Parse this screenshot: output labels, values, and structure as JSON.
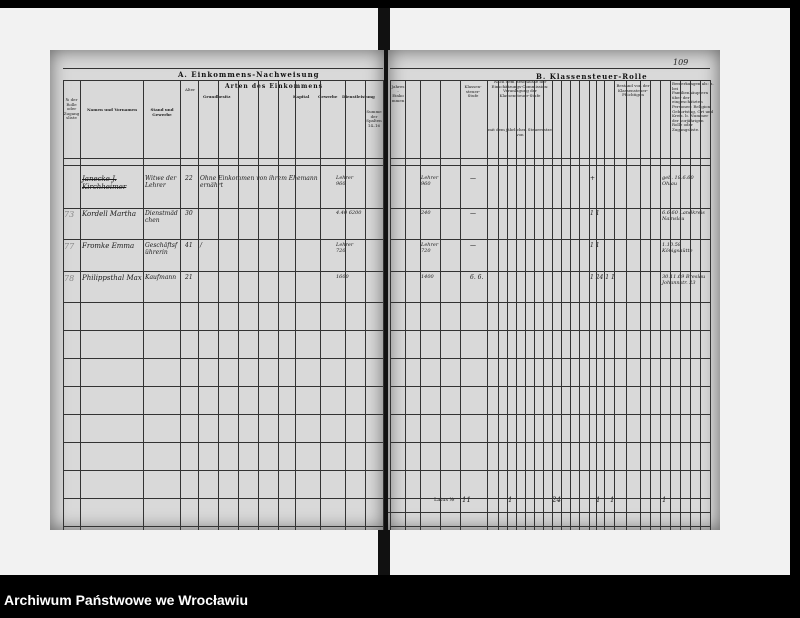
{
  "left_page": {
    "title": "A. Einkommens-Nachweisung",
    "subtitle": "Arten des Einkommens",
    "groups": [
      "Grundbesitz",
      "Kapital",
      "Gewerbe",
      "Dienstleistung"
    ],
    "headers": {
      "number": "№ der Rolle oder Zugangsliste",
      "name": "Namen und Vornamen",
      "status": "Stand und Gewerbe",
      "age": "Alter",
      "sum_total": "Summe der Spalten 14–16"
    }
  },
  "right_page": {
    "title": "B. Klassensteuer-Rolle",
    "page_number": "109",
    "headers": {
      "income_sum": "Jahres-Einkommen",
      "tax": "Klassen-steuer-Stufe",
      "decision": "Nach dem Beschlusse der Einschätzungs-Commission: Veranlagung der Klassensteuer-Stufe",
      "yearly": "mit dem jährlichen Steuersatze von",
      "household": "Bestand von der Klassensteuer-Pflichtigen",
      "remarks": "Bemerkungen als: a. bei Familienhäuptern über der eingeschätzten Personen: Religion, Geburtstag, Ort und Kreis. b. Nummer der vorjährigen Rolle oder Zugangsliste."
    },
    "sum_label": "Latus №"
  },
  "entries": [
    {
      "no": "",
      "name": "Janecke J. Kirchheimer",
      "status": "Witwe der Lehrer",
      "age": "22",
      "note": "Ohne Einkommen von ihrem Ehemann ernährt",
      "income": "Lehrer 960",
      "sum": "Lehrer 960",
      "tax": "—",
      "mark": "+",
      "remark": "geb. 18.6.60 Ohlau"
    },
    {
      "no": "73",
      "name": "Kordell Martha",
      "status": "Dienstmädchen",
      "age": "30",
      "note": "",
      "income": "4.40 6200",
      "sum": "240",
      "tax": "—",
      "mark": "1  1",
      "remark": "6.6.60 Landkreis Namslau"
    },
    {
      "no": "77",
      "name": "Fromke Emma",
      "status": "Geschäftsführerin",
      "age": "41",
      "note": "/",
      "income": "Lehrer 720",
      "sum": "Lehrer 720",
      "tax": "—",
      "mark": "1  1",
      "remark": "1.10.58 Königshütte"
    },
    {
      "no": "78",
      "name": "Philippsthal Max",
      "status": "Kaufmann",
      "age": "21",
      "note": "",
      "income": "1600",
      "sum": "1400",
      "tax": "6. 6.",
      "mark": "1   24   1   1",
      "remark": "30.11.69 Breslau Johannstr. 23"
    }
  ],
  "totals": [
    "11",
    "1",
    "24",
    "1",
    "1",
    "1"
  ],
  "footer": "Archiwum Państwowe we Wrocławiu",
  "colors": {
    "background": "#000000",
    "paper": "#f2f2f2",
    "page": "#d9d9d9",
    "ink": "#1a1a1a"
  }
}
